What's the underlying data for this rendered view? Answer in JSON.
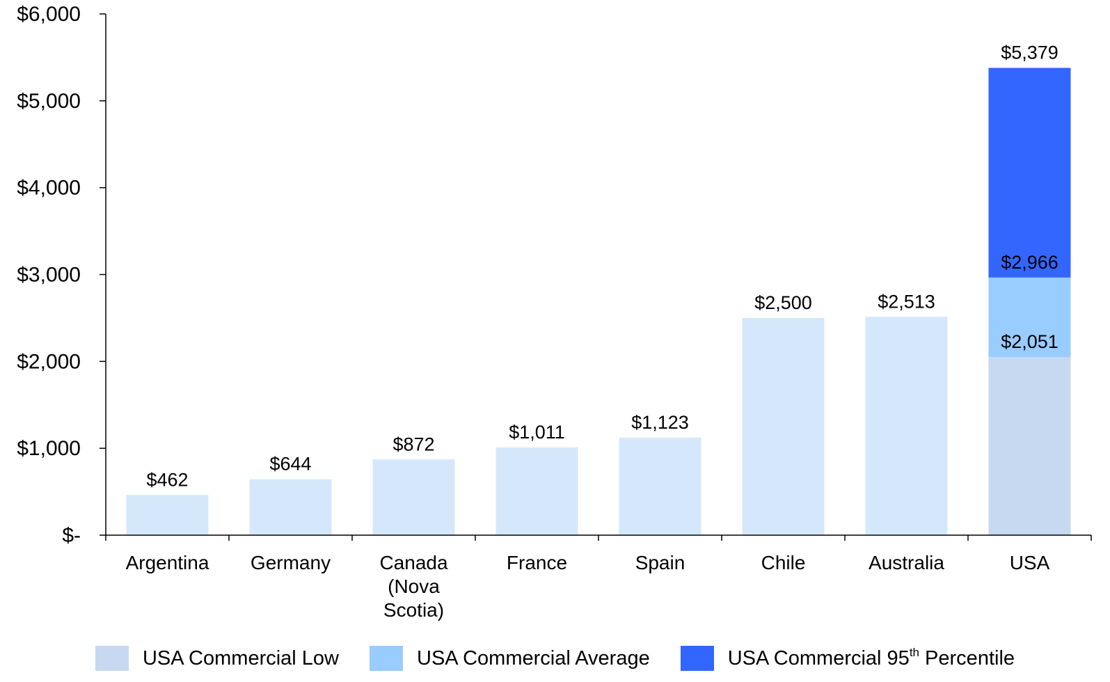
{
  "chart_data": {
    "type": "bar",
    "categories": [
      "Argentina",
      "Germany",
      "Canada (Nova Scotia)",
      "France",
      "Spain",
      "Chile",
      "Australia",
      "USA"
    ],
    "values": [
      462,
      644,
      872,
      1011,
      1123,
      2500,
      2513,
      null
    ],
    "value_labels": [
      "$462",
      "$644",
      "$872",
      "$1,011",
      "$1,123",
      "$2,500",
      "$2,513",
      null
    ],
    "color": "#d5e8fb",
    "series": [
      {
        "name": "USA Commercial Low",
        "color": "#c6d9f0",
        "values": [
          null,
          null,
          null,
          null,
          null,
          null,
          null,
          2051
        ],
        "value_labels": [
          null,
          null,
          null,
          null,
          null,
          null,
          null,
          "$2,051"
        ]
      },
      {
        "name": "USA Commercial Average",
        "color": "#99ccff",
        "values": [
          null,
          null,
          null,
          null,
          null,
          null,
          null,
          2966
        ],
        "value_labels": [
          null,
          null,
          null,
          null,
          null,
          null,
          null,
          "$2,966"
        ]
      },
      {
        "name": "USA Commercial 95th Percentile",
        "color": "#3366ff",
        "values": [
          null,
          null,
          null,
          null,
          null,
          null,
          null,
          5379
        ],
        "value_labels": [
          null,
          null,
          null,
          null,
          null,
          null,
          null,
          "$5,379"
        ]
      }
    ],
    "ylim": [
      0,
      6000
    ],
    "yticks": [
      {
        "value": 0,
        "label": "$-"
      },
      {
        "value": 1000,
        "label": "$1,000"
      },
      {
        "value": 2000,
        "label": "$2,000"
      },
      {
        "value": 3000,
        "label": "$3,000"
      },
      {
        "value": 4000,
        "label": "$4,000"
      },
      {
        "value": 5000,
        "label": "$5,000"
      },
      {
        "value": 6000,
        "label": "$6,000"
      }
    ],
    "grid": false
  }
}
